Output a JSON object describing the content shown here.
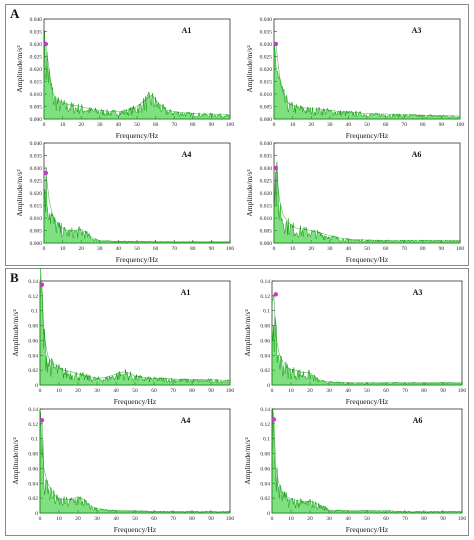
{
  "figure": {
    "panels": [
      {
        "letter": "A"
      },
      {
        "letter": "B"
      }
    ]
  },
  "colors": {
    "signal": "#18c418",
    "signal_dark": "#0c9a0c",
    "peak_marker": "#cc33cc",
    "axis": "#333333"
  },
  "chart_data": [
    {
      "type": "area",
      "panel": "A",
      "title": "A1",
      "xlabel": "Frequency/Hz",
      "ylabel": "Amplitude/m/s²",
      "xlim": [
        0,
        100
      ],
      "ylim": [
        0,
        0.04
      ],
      "xticks": [
        0,
        10,
        20,
        30,
        40,
        50,
        60,
        70,
        80,
        90,
        100
      ],
      "yticks": [
        "0.000",
        "0.005",
        "0.010",
        "0.015",
        "0.020",
        "0.025",
        "0.030",
        "0.035",
        "0.040"
      ],
      "show_xlabel": true,
      "peak": {
        "x": 1.0,
        "y": 0.03
      },
      "series": [
        {
          "x": [
            0,
            1,
            3,
            5,
            8,
            12,
            16,
            20,
            25,
            30,
            35,
            40,
            45,
            50,
            55,
            58,
            62,
            66,
            70,
            75,
            80,
            85,
            90,
            95,
            100
          ],
          "values": [
            0.03,
            0.03,
            0.018,
            0.01,
            0.007,
            0.006,
            0.0055,
            0.005,
            0.004,
            0.0035,
            0.003,
            0.003,
            0.0035,
            0.005,
            0.008,
            0.0095,
            0.006,
            0.0035,
            0.003,
            0.0025,
            0.0022,
            0.002,
            0.002,
            0.0018,
            0.0015
          ]
        }
      ]
    },
    {
      "type": "area",
      "panel": "A",
      "title": "A3",
      "xlabel": "Frequency/Hz",
      "ylabel": "Amplitude/m/s²",
      "xlim": [
        0,
        100
      ],
      "ylim": [
        0,
        0.04
      ],
      "xticks": [
        0,
        10,
        20,
        30,
        40,
        50,
        60,
        70,
        80,
        90,
        100
      ],
      "yticks": [
        "0.000",
        "0.005",
        "0.010",
        "0.015",
        "0.020",
        "0.025",
        "0.030",
        "0.035",
        "0.040"
      ],
      "show_xlabel": true,
      "peak": {
        "x": 1.0,
        "y": 0.03
      },
      "series": [
        {
          "x": [
            0,
            1,
            3,
            5,
            8,
            12,
            16,
            20,
            25,
            30,
            35,
            40,
            45,
            50,
            55,
            60,
            65,
            70,
            75,
            80,
            85,
            90,
            95,
            100
          ],
          "values": [
            0.03,
            0.03,
            0.017,
            0.01,
            0.006,
            0.005,
            0.0045,
            0.004,
            0.004,
            0.0035,
            0.003,
            0.0028,
            0.0025,
            0.0022,
            0.002,
            0.002,
            0.0018,
            0.0017,
            0.0016,
            0.0015,
            0.0015,
            0.0014,
            0.0013,
            0.0012
          ]
        }
      ]
    },
    {
      "type": "area",
      "panel": "A",
      "title": "A4",
      "xlabel": "Frequency/Hz",
      "ylabel": "Amplitude/m/s²",
      "xlim": [
        0,
        100
      ],
      "ylim": [
        0,
        0.04
      ],
      "xticks": [
        0,
        10,
        20,
        30,
        40,
        50,
        60,
        70,
        80,
        90,
        100
      ],
      "yticks": [
        "0.000",
        "0.005",
        "0.010",
        "0.015",
        "0.020",
        "0.025",
        "0.030",
        "0.035",
        "0.040"
      ],
      "show_xlabel": true,
      "peak": {
        "x": 1.0,
        "y": 0.028
      },
      "series": [
        {
          "x": [
            0,
            1,
            3,
            5,
            8,
            12,
            16,
            20,
            23,
            26,
            30,
            35,
            40,
            45,
            50,
            55,
            60,
            70,
            80,
            90,
            100
          ],
          "values": [
            0.028,
            0.028,
            0.016,
            0.01,
            0.007,
            0.005,
            0.005,
            0.0055,
            0.004,
            0.002,
            0.001,
            0.0008,
            0.0007,
            0.0007,
            0.0006,
            0.0006,
            0.0006,
            0.0005,
            0.0005,
            0.0005,
            0.0005
          ]
        }
      ]
    },
    {
      "type": "area",
      "panel": "A",
      "title": "A6",
      "xlabel": "Frequency/Hz",
      "ylabel": "Amplitude/m/s²",
      "xlim": [
        0,
        100
      ],
      "ylim": [
        0,
        0.04
      ],
      "xticks": [
        0,
        10,
        20,
        30,
        40,
        50,
        60,
        70,
        80,
        90,
        100
      ],
      "yticks": [
        "0.000",
        "0.005",
        "0.010",
        "0.015",
        "0.020",
        "0.025",
        "0.030",
        "0.035",
        "0.040"
      ],
      "show_xlabel": true,
      "peak": {
        "x": 1.0,
        "y": 0.03
      },
      "series": [
        {
          "x": [
            0,
            1,
            3,
            5,
            8,
            12,
            16,
            20,
            25,
            30,
            35,
            40,
            45,
            50,
            60,
            70,
            80,
            90,
            100
          ],
          "values": [
            0.03,
            0.03,
            0.017,
            0.011,
            0.008,
            0.006,
            0.0055,
            0.005,
            0.004,
            0.003,
            0.002,
            0.0015,
            0.0013,
            0.0012,
            0.001,
            0.001,
            0.001,
            0.001,
            0.0009
          ]
        }
      ]
    },
    {
      "type": "area",
      "panel": "B",
      "title": "A1",
      "xlabel": "Frequency/Hz",
      "ylabel": "Amplitude/m/s²",
      "xlim": [
        0,
        100
      ],
      "ylim": [
        0,
        0.14
      ],
      "xticks": [
        0,
        10,
        20,
        30,
        40,
        50,
        60,
        70,
        80,
        90,
        100
      ],
      "yticks": [
        "0",
        "0.02",
        "0.04",
        "0.06",
        "0.08",
        "0.1",
        "0.12",
        "0.14"
      ],
      "show_xlabel": true,
      "peak": {
        "x": 1.0,
        "y": 0.135
      },
      "series": [
        {
          "x": [
            0,
            1,
            2,
            4,
            6,
            9,
            12,
            16,
            20,
            25,
            30,
            35,
            40,
            45,
            50,
            55,
            60,
            65,
            70,
            80,
            90,
            100
          ],
          "values": [
            0.135,
            0.135,
            0.07,
            0.04,
            0.03,
            0.025,
            0.02,
            0.018,
            0.015,
            0.012,
            0.009,
            0.01,
            0.015,
            0.018,
            0.012,
            0.01,
            0.009,
            0.009,
            0.008,
            0.007,
            0.007,
            0.006
          ]
        }
      ]
    },
    {
      "type": "area",
      "panel": "B",
      "title": "A3",
      "xlabel": "Frequency/Hz",
      "ylabel": "Amplitude/m/s²",
      "xlim": [
        0,
        100
      ],
      "ylim": [
        0,
        0.14
      ],
      "xticks": [
        0,
        10,
        20,
        30,
        40,
        50,
        60,
        70,
        80,
        90,
        100
      ],
      "yticks": [
        "0",
        "0.02",
        "0.04",
        "0.06",
        "0.08",
        "0.1",
        "0.12",
        "0.14"
      ],
      "show_xlabel": true,
      "peak": {
        "x": 2.0,
        "y": 0.122
      },
      "series": [
        {
          "x": [
            0,
            1,
            2,
            4,
            6,
            9,
            12,
            16,
            20,
            22,
            25,
            30,
            40,
            50,
            60,
            70,
            80,
            90,
            100
          ],
          "values": [
            0.11,
            0.122,
            0.065,
            0.04,
            0.03,
            0.022,
            0.02,
            0.017,
            0.016,
            0.012,
            0.006,
            0.004,
            0.003,
            0.003,
            0.003,
            0.003,
            0.003,
            0.003,
            0.003
          ]
        }
      ]
    },
    {
      "type": "area",
      "panel": "B",
      "title": "A4",
      "xlabel": "Frequency/Hz",
      "ylabel": "Amplitude/m/s²",
      "xlim": [
        0,
        100
      ],
      "ylim": [
        0,
        0.14
      ],
      "xticks": [
        0,
        10,
        20,
        30,
        40,
        50,
        60,
        70,
        80,
        90,
        100
      ],
      "yticks": [
        "0",
        "0.02",
        "0.04",
        "0.06",
        "0.08",
        "0.1",
        "0.12",
        "0.14"
      ],
      "show_xlabel": true,
      "peak": {
        "x": 1.0,
        "y": 0.125
      },
      "series": [
        {
          "x": [
            0,
            1,
            2,
            4,
            6,
            9,
            12,
            16,
            20,
            23,
            26,
            30,
            35,
            40,
            50,
            60,
            70,
            80,
            90,
            100
          ],
          "values": [
            0.125,
            0.125,
            0.06,
            0.04,
            0.03,
            0.02,
            0.018,
            0.018,
            0.022,
            0.018,
            0.01,
            0.006,
            0.004,
            0.003,
            0.003,
            0.002,
            0.002,
            0.002,
            0.002,
            0.002
          ]
        }
      ]
    },
    {
      "type": "area",
      "panel": "B",
      "title": "A6",
      "xlabel": "Frequency/Hz",
      "ylabel": "Amplitude/m/s²",
      "xlim": [
        0,
        100
      ],
      "ylim": [
        0,
        0.14
      ],
      "xticks": [
        0,
        10,
        20,
        30,
        40,
        50,
        60,
        70,
        80,
        90,
        100
      ],
      "yticks": [
        "0",
        "0.02",
        "0.04",
        "0.06",
        "0.08",
        "0.1",
        "0.12",
        "0.14"
      ],
      "show_xlabel": true,
      "peak": {
        "x": 1.0,
        "y": 0.126
      },
      "series": [
        {
          "x": [
            0,
            1,
            2,
            4,
            6,
            9,
            12,
            16,
            20,
            24,
            28,
            30,
            40,
            50,
            60,
            70,
            80,
            90,
            100
          ],
          "values": [
            0.126,
            0.126,
            0.06,
            0.035,
            0.025,
            0.02,
            0.018,
            0.015,
            0.016,
            0.012,
            0.008,
            0.004,
            0.003,
            0.003,
            0.003,
            0.002,
            0.002,
            0.002,
            0.002
          ]
        }
      ]
    }
  ]
}
